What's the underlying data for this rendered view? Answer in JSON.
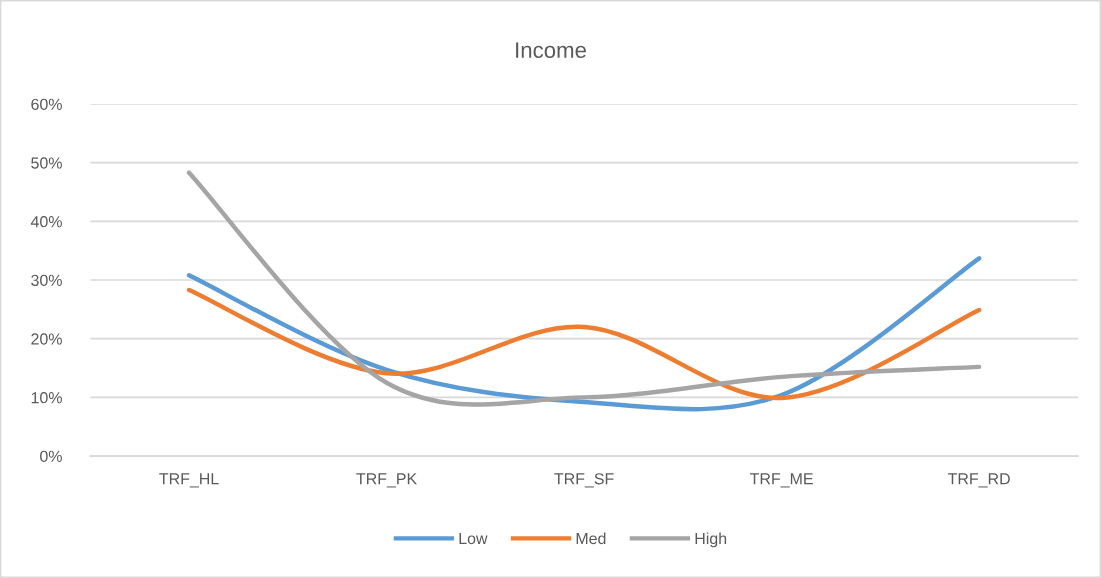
{
  "chart_data": {
    "type": "line",
    "title": "Income",
    "categories": [
      "TRF_HL",
      "TRF_PK",
      "TRF_SF",
      "TRF_ME",
      "TRF_RD"
    ],
    "series": [
      {
        "name": "Low",
        "color": "#5b9bd5",
        "values": [
          30.8,
          14.7,
          9.2,
          10.4,
          33.7
        ]
      },
      {
        "name": "Med",
        "color": "#ed7d31",
        "values": [
          28.3,
          14.1,
          22.0,
          9.9,
          24.9
        ]
      },
      {
        "name": "High",
        "color": "#a5a5a5",
        "values": [
          48.3,
          12.5,
          10.0,
          13.5,
          15.2
        ]
      }
    ],
    "ylim": [
      0,
      60
    ],
    "yticks": [
      {
        "value": 0,
        "label": "0%"
      },
      {
        "value": 10,
        "label": "10%"
      },
      {
        "value": 20,
        "label": "20%"
      },
      {
        "value": 30,
        "label": "30%"
      },
      {
        "value": 40,
        "label": "40%"
      },
      {
        "value": 50,
        "label": "50%"
      },
      {
        "value": 60,
        "label": "60%"
      }
    ],
    "grid": "y",
    "legend": "bottom",
    "marker": "none",
    "line_style": "solid"
  }
}
